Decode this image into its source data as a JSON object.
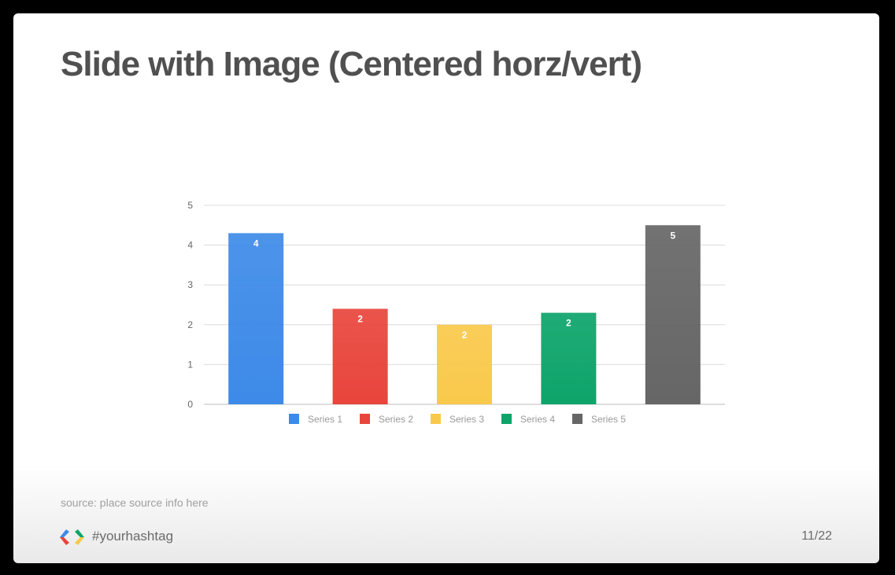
{
  "slide": {
    "title": "Slide with Image (Centered horz/vert)",
    "source": "source: place source info here",
    "hashtag": "#yourhashtag",
    "page_number": "11/22",
    "logo_icon": "google-developers-chevron-logo"
  },
  "chart_data": {
    "type": "bar",
    "title": "",
    "xlabel": "",
    "ylabel": "",
    "ylim": [
      0,
      5
    ],
    "yticks": [
      0,
      1,
      2,
      3,
      4,
      5
    ],
    "grid": true,
    "legend_position": "bottom",
    "series": [
      {
        "name": "Series 1",
        "value": 4.3,
        "label": "4",
        "color": "#3d8ae8"
      },
      {
        "name": "Series 2",
        "value": 2.4,
        "label": "2",
        "color": "#e8453c"
      },
      {
        "name": "Series 3",
        "value": 2.0,
        "label": "2",
        "color": "#f9c94b"
      },
      {
        "name": "Series 4",
        "value": 2.3,
        "label": "2",
        "color": "#0da46a"
      },
      {
        "name": "Series 5",
        "value": 4.5,
        "label": "5",
        "color": "#666666"
      }
    ]
  }
}
